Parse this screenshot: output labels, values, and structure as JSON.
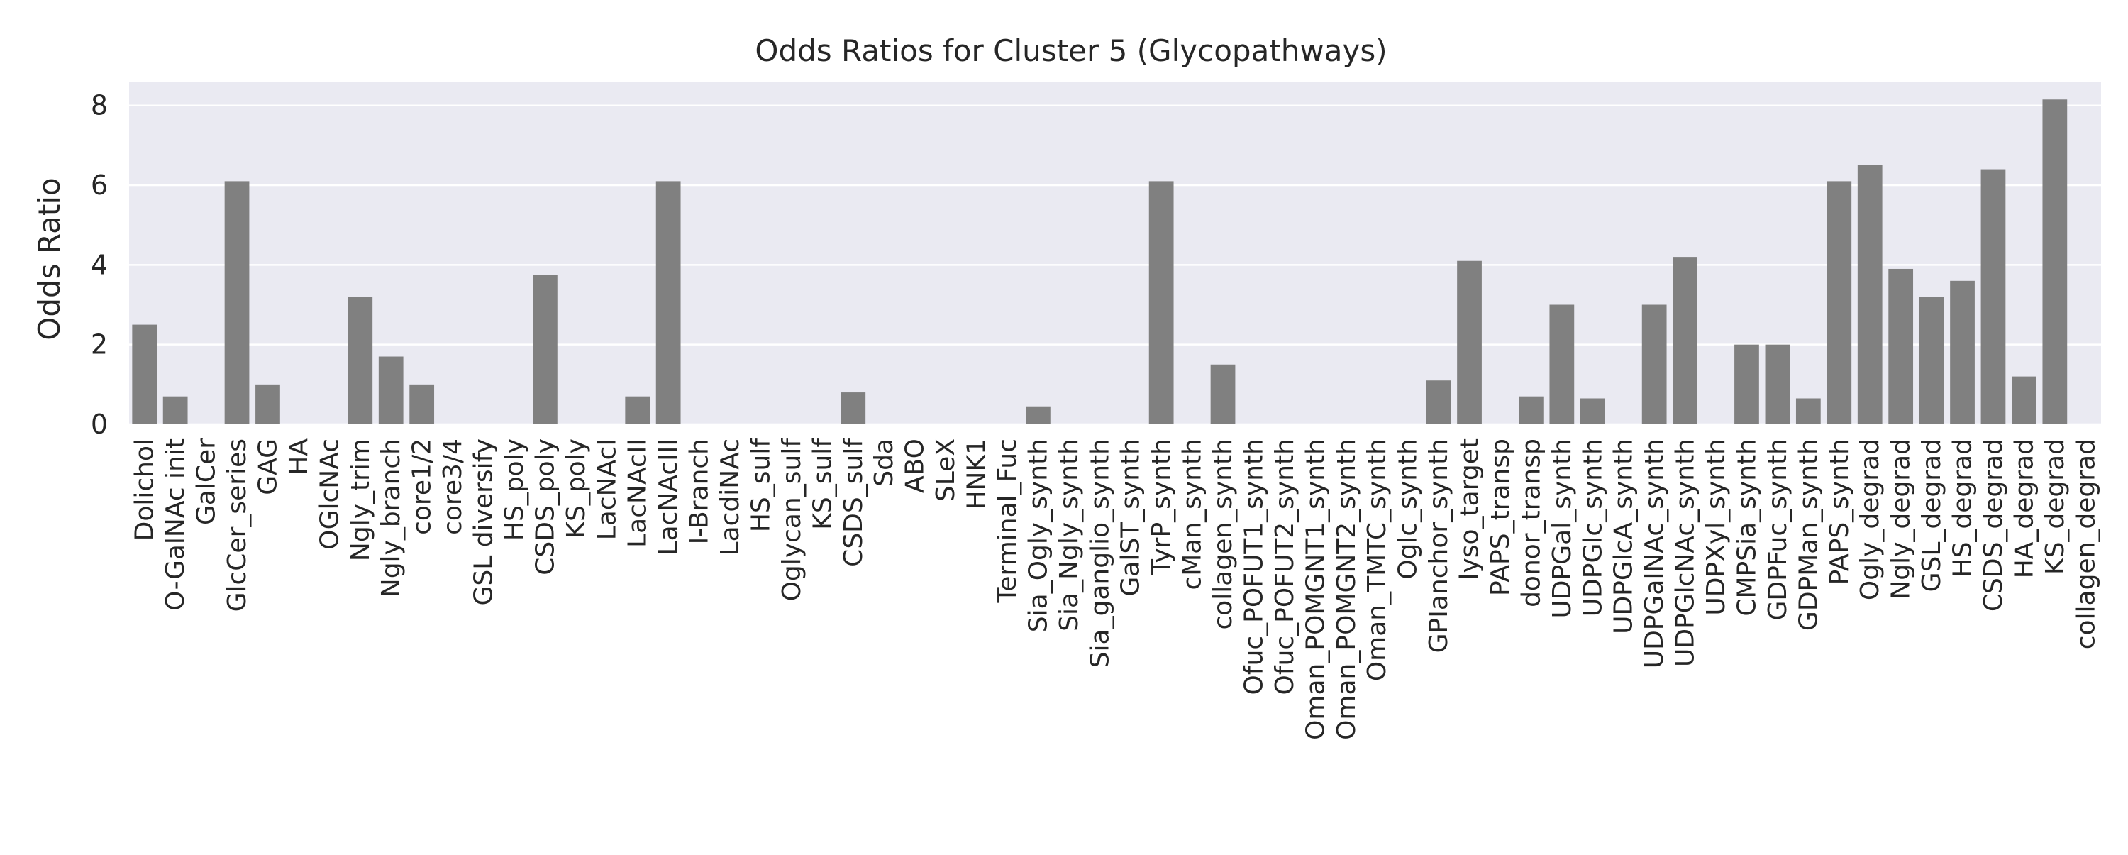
{
  "chart_data": {
    "type": "bar",
    "title": "Odds Ratios for Cluster 5 (Glycopathways)",
    "xlabel": "",
    "ylabel": "Odds Ratio",
    "ylim": [
      0,
      8.6
    ],
    "yticks": [
      0,
      2,
      4,
      6,
      8
    ],
    "grid": true,
    "legend": "none",
    "colors": {
      "bar": "#808080",
      "plot_bg": "#EAEAF2",
      "grid": "#ffffff"
    },
    "categories": [
      "Dolichol",
      "O-GalNAc init",
      "GalCer",
      "GlcCer_series",
      "GAG",
      "HA",
      "OGlcNAc",
      "Ngly_trim",
      "Ngly_branch",
      "core1/2",
      "core3/4",
      "GSL diversify",
      "HS_poly",
      "CSDS_poly",
      "KS_poly",
      "LacNAcI",
      "LacNAcII",
      "LacNAcIII",
      "I-Branch",
      "LacdiNAc",
      "HS_sulf",
      "Oglycan_sulf",
      "KS_sulf",
      "CSDS_sulf",
      "Sda",
      "ABO",
      "SLeX",
      "HNK1",
      "Terminal_Fuc",
      "Sia_Ogly_synth",
      "Sia_Ngly_synth",
      "Sia_ganglio_synth",
      "GalST_synth",
      "TyrP_synth",
      "cMan_synth",
      "collagen_synth",
      "Ofuc_POFUT1_synth",
      "Ofuc_POFUT2_synth",
      "Oman_POMGNT1_synth",
      "Oman_POMGNT2_synth",
      "Oman_TMTC_synth",
      "Oglc_synth",
      "GPIanchor_synth",
      "lyso_target",
      "PAPS_transp",
      "donor_transp",
      "UDPGal_synth",
      "UDPGlc_synth",
      "UDPGlcA_synth",
      "UDPGalNAc_synth",
      "UDPGlcNAc_synth",
      "UDPXyl_synth",
      "CMPSia_synth",
      "GDPFuc_synth",
      "GDPMan_synth",
      "PAPS_synth",
      "Ogly_degrad",
      "Ngly_degrad",
      "GSL_degrad",
      "HS_degrad",
      "CSDS_degrad",
      "HA_degrad",
      "KS_degrad",
      "collagen_degrad"
    ],
    "values": [
      2.5,
      0.7,
      0,
      6.1,
      1.0,
      0,
      0,
      3.2,
      1.7,
      1.0,
      0,
      0,
      0,
      3.75,
      0,
      0,
      0.7,
      6.1,
      0,
      0,
      0,
      0,
      0,
      0.8,
      0,
      0,
      0,
      0,
      0,
      0.45,
      0,
      0,
      0,
      6.1,
      0,
      1.5,
      0,
      0,
      0,
      0,
      0,
      0,
      1.1,
      4.1,
      0,
      0.7,
      3.0,
      0.65,
      0,
      3.0,
      4.2,
      0,
      2.0,
      2.0,
      0.65,
      6.1,
      6.5,
      3.9,
      3.2,
      3.6,
      6.4,
      1.2,
      8.15,
      0
    ]
  }
}
